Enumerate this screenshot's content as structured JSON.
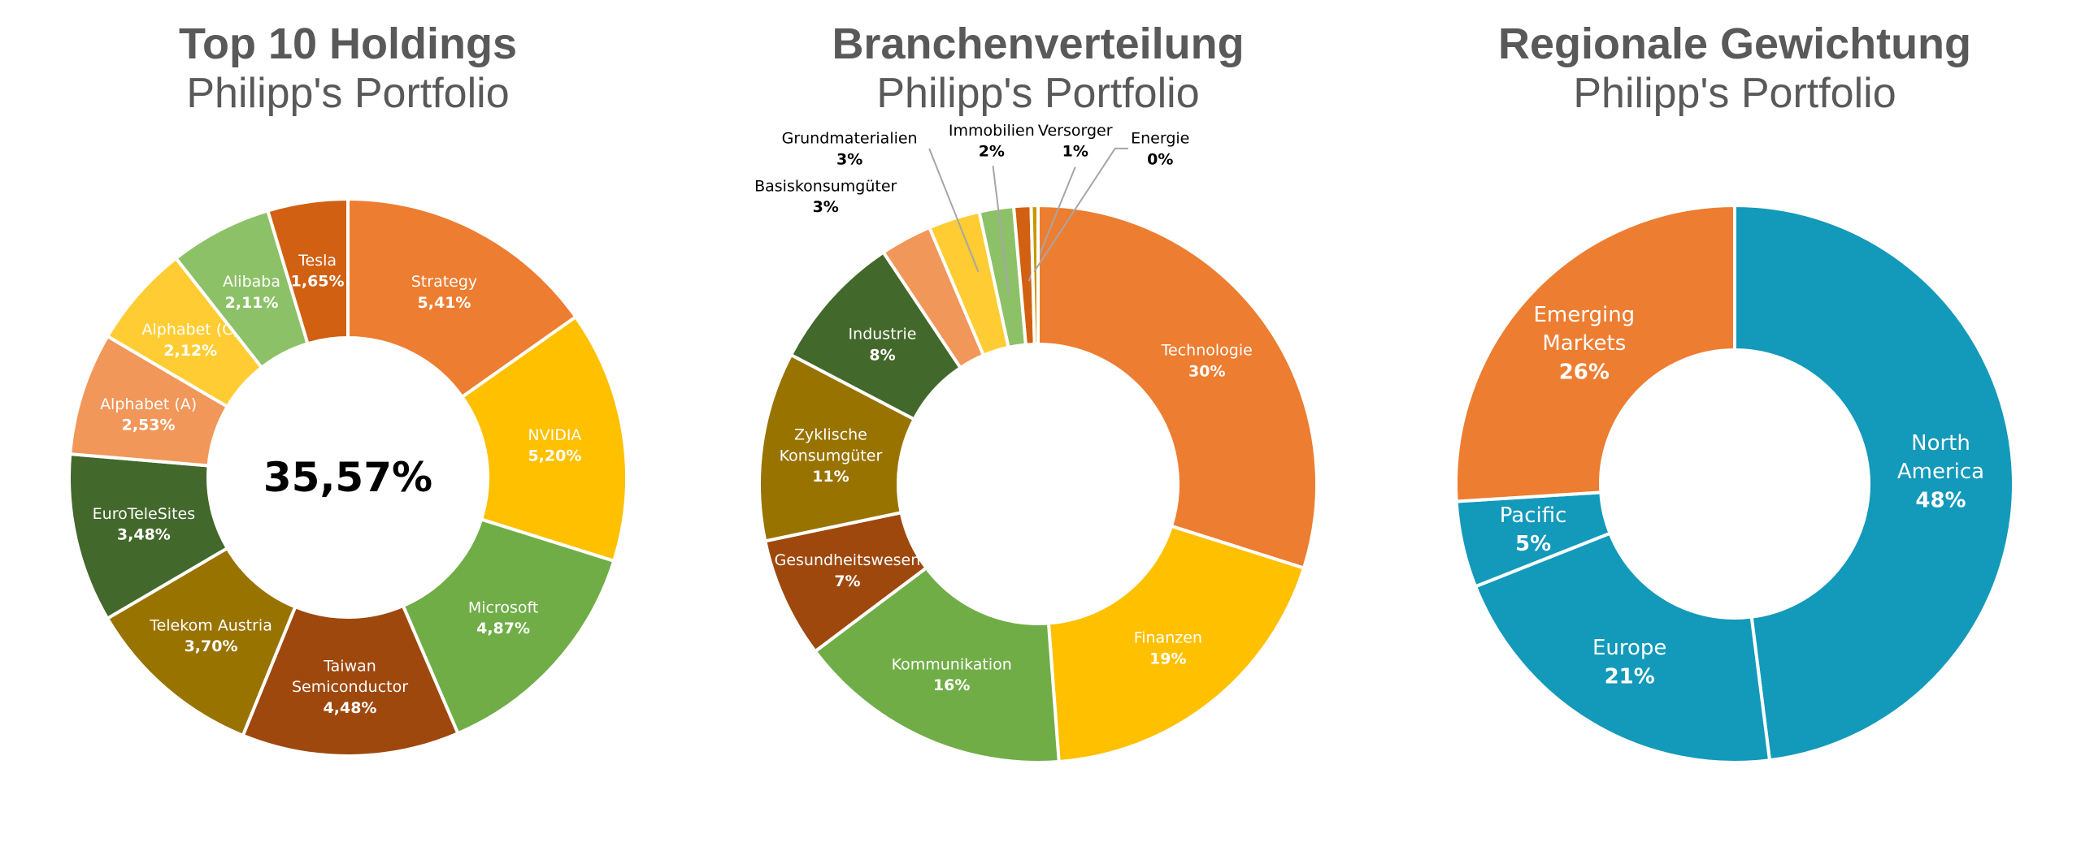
{
  "chart_data": [
    {
      "type": "pie",
      "variant": "donut",
      "title": "Top 10 Holdings",
      "subtitle": "Philipp's Portfolio",
      "center_label": "35,57%",
      "categories": [
        "Strategy",
        "NVIDIA",
        "Microsoft",
        "Taiwan Semiconductor",
        "Telekom Austria",
        "EuroTeleSites",
        "Alphabet (A)",
        "Alphabet (C)",
        "Alibaba",
        "Tesla"
      ],
      "values": [
        5.41,
        5.2,
        4.87,
        4.48,
        3.7,
        3.48,
        2.53,
        2.12,
        2.11,
        1.65
      ],
      "value_labels": [
        "5,41%",
        "5,20%",
        "4,87%",
        "4,48%",
        "3,70%",
        "3,48%",
        "2,53%",
        "2,12%",
        "2,11%",
        "1,65%"
      ],
      "colors": [
        "#ED7D31",
        "#FFC000",
        "#70AD47",
        "#9E480E",
        "#997300",
        "#43682B",
        "#F1975A",
        "#FFCD33",
        "#8CC168",
        "#D26012"
      ]
    },
    {
      "type": "pie",
      "variant": "donut",
      "title": "Branchenverteilung",
      "subtitle": "Philipp's Portfolio",
      "categories": [
        "Technologie",
        "Finanzen",
        "Kommunikation",
        "Gesundheitswesen",
        "Zyklische Konsumgüter",
        "Industrie",
        "Basiskonsumgüter",
        "Grundmaterialien",
        "Immobilien",
        "Versorger",
        "Energie"
      ],
      "values": [
        30,
        19,
        16,
        7,
        11,
        8,
        3,
        3,
        2,
        1,
        0.4
      ],
      "value_labels": [
        "30%",
        "19%",
        "16%",
        "7%",
        "11%",
        "8%",
        "3%",
        "3%",
        "2%",
        "1%",
        "0%"
      ],
      "colors": [
        "#ED7D31",
        "#FFC000",
        "#70AD47",
        "#9E480E",
        "#997300",
        "#43682B",
        "#F1975A",
        "#FFCD33",
        "#8CC168",
        "#D26012",
        "#C89800"
      ]
    },
    {
      "type": "pie",
      "variant": "donut",
      "title": "Regionale Gewichtung",
      "subtitle": "Philipp's Portfolio",
      "categories": [
        "North America",
        "Europe",
        "Pacific",
        "Emerging Markets"
      ],
      "values": [
        48,
        21,
        5,
        26
      ],
      "value_labels": [
        "48%",
        "21%",
        "5%",
        "26%"
      ],
      "colors": [
        "#1399BA",
        "#1399BA",
        "#1399BA",
        "#ED7D31"
      ]
    }
  ]
}
